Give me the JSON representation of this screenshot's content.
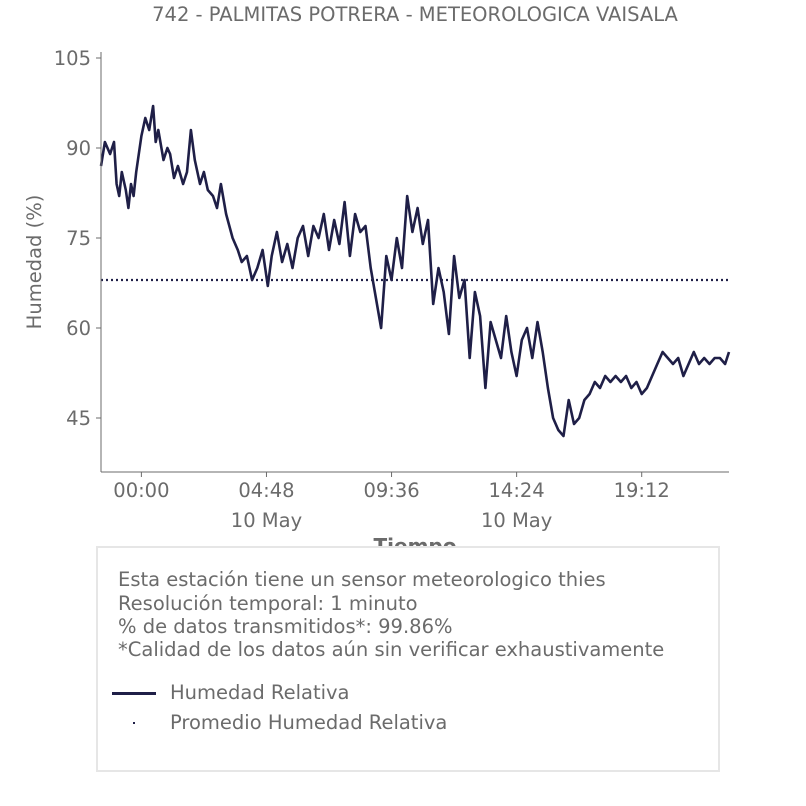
{
  "colors": {
    "series": "#1f1f47",
    "text": "#6b6b6b",
    "box_border": "#e6e6e6"
  },
  "chart_data": {
    "type": "line",
    "title": "742 - PALMITAS POTRERA - METEOROLOGICA VAISALA",
    "xlabel": "Tiempo",
    "ylabel": "Humedad (%)",
    "x_unit": "hours since 00:00 10 May",
    "xlim": [
      -1.55,
      22.55
    ],
    "ylim": [
      36,
      106
    ],
    "yticks": [
      45,
      60,
      75,
      90,
      105
    ],
    "xticks": [
      {
        "value": 0.0,
        "label": "00:00",
        "sublabel": ""
      },
      {
        "value": 4.8,
        "label": "04:48",
        "sublabel": "10 May"
      },
      {
        "value": 9.6,
        "label": "09:36",
        "sublabel": ""
      },
      {
        "value": 14.4,
        "label": "14:24",
        "sublabel": "10 May"
      },
      {
        "value": 19.2,
        "label": "19:12",
        "sublabel": ""
      }
    ],
    "series": [
      {
        "name": "Humedad Relativa",
        "style": "solid",
        "x": [
          -1.55,
          -1.4,
          -1.2,
          -1.05,
          -0.95,
          -0.85,
          -0.75,
          -0.6,
          -0.5,
          -0.4,
          -0.3,
          -0.2,
          0.0,
          0.15,
          0.3,
          0.45,
          0.55,
          0.65,
          0.85,
          1.0,
          1.1,
          1.25,
          1.4,
          1.6,
          1.75,
          1.9,
          2.05,
          2.25,
          2.4,
          2.55,
          2.75,
          2.9,
          3.05,
          3.25,
          3.5,
          3.7,
          3.85,
          4.05,
          4.25,
          4.45,
          4.65,
          4.85,
          5.0,
          5.2,
          5.4,
          5.6,
          5.8,
          6.0,
          6.2,
          6.4,
          6.6,
          6.8,
          7.0,
          7.2,
          7.4,
          7.6,
          7.8,
          8.0,
          8.2,
          8.4,
          8.6,
          8.8,
          9.0,
          9.2,
          9.4,
          9.6,
          9.8,
          10.0,
          10.2,
          10.4,
          10.6,
          10.8,
          11.0,
          11.2,
          11.4,
          11.6,
          11.8,
          12.0,
          12.2,
          12.4,
          12.6,
          12.8,
          13.0,
          13.2,
          13.4,
          13.6,
          13.8,
          14.0,
          14.2,
          14.4,
          14.6,
          14.8,
          15.0,
          15.2,
          15.4,
          15.6,
          15.8,
          16.0,
          16.2,
          16.4,
          16.6,
          16.8,
          17.0,
          17.2,
          17.4,
          17.6,
          17.8,
          18.0,
          18.2,
          18.4,
          18.6,
          18.8,
          19.0,
          19.2,
          19.4,
          19.6,
          19.8,
          20.0,
          20.2,
          20.4,
          20.6,
          20.8,
          21.0,
          21.2,
          21.4,
          21.6,
          21.8,
          22.0,
          22.2,
          22.4,
          22.55
        ],
        "y": [
          87,
          91,
          89,
          91,
          84,
          82,
          86,
          83,
          80,
          84,
          82,
          86,
          92,
          95,
          93,
          97,
          91,
          93,
          88,
          90,
          89,
          85,
          87,
          84,
          86,
          93,
          88,
          84,
          86,
          83,
          82,
          80,
          84,
          79,
          75,
          73,
          71,
          72,
          68,
          70,
          73,
          67,
          72,
          76,
          71,
          74,
          70,
          75,
          77,
          72,
          77,
          75,
          79,
          73,
          78,
          74,
          81,
          72,
          79,
          76,
          77,
          70,
          65,
          60,
          72,
          68,
          75,
          70,
          82,
          76,
          80,
          74,
          78,
          64,
          70,
          66,
          59,
          72,
          65,
          68,
          55,
          66,
          62,
          50,
          61,
          58,
          55,
          62,
          56,
          52,
          58,
          60,
          55,
          61,
          56,
          50,
          45,
          43,
          42,
          48,
          44,
          45,
          48,
          49,
          51,
          50,
          52,
          51,
          52,
          51,
          52,
          50,
          51,
          49,
          50,
          52,
          54,
          56,
          55,
          54,
          55,
          52,
          54,
          56,
          54,
          55,
          54,
          55,
          55,
          54,
          56
        ]
      },
      {
        "name": "Promedio Humedad Relativa",
        "style": "dotted",
        "x": [
          -1.55,
          22.55
        ],
        "y": [
          68,
          68
        ]
      }
    ],
    "legend": {
      "placement": "bottom",
      "entries": [
        "Humedad Relativa",
        "Promedio Humedad Relativa"
      ]
    },
    "grid": false
  },
  "info": {
    "lines": [
      "Esta estación tiene un sensor meteorologico thies",
      "Resolución temporal: 1 minuto",
      "% de datos transmitidos*: 99.86%",
      "*Calidad de los datos aún sin verificar exhaustivamente"
    ]
  }
}
